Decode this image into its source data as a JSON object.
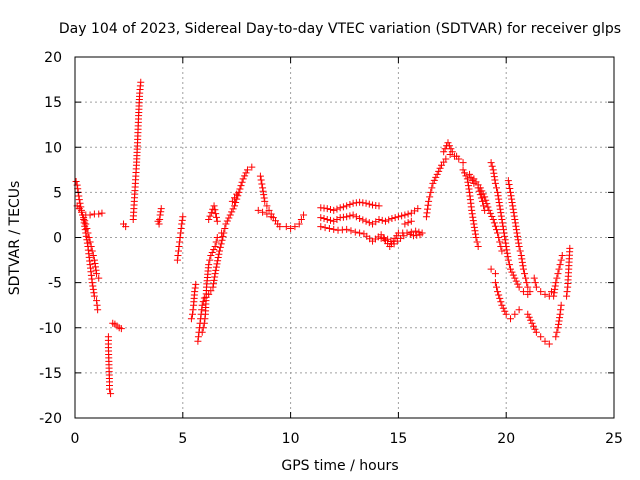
{
  "chart_data": {
    "type": "scatter",
    "title": "Day 104 of 2023, Sidereal Day-to-day VTEC variation (SDTVAR) for receiver glps",
    "xlabel": "GPS time / hours",
    "ylabel": "SDTVAR / TECUs",
    "xlim": [
      0,
      25
    ],
    "ylim": [
      -20,
      20
    ],
    "xticks": [
      0,
      5,
      10,
      15,
      20,
      25
    ],
    "yticks": [
      -20,
      -15,
      -10,
      -5,
      0,
      5,
      10,
      15,
      20
    ],
    "xtick_labels": [
      "0",
      "5",
      "10",
      "15",
      "20",
      "25"
    ],
    "ytick_labels": [
      "-20",
      "-15",
      "-10",
      "-5",
      "0",
      "5",
      "10",
      "15",
      "20"
    ],
    "grid": true,
    "marker": "+",
    "color": "#ff0000",
    "series": [
      {
        "name": "SDTVAR",
        "segments": [
          [
            [
              0.05,
              6.2
            ],
            [
              0.1,
              5.8
            ],
            [
              0.15,
              5.0
            ],
            [
              0.2,
              4.2
            ],
            [
              0.3,
              3.0
            ],
            [
              0.4,
              2.0
            ],
            [
              0.5,
              0.5
            ],
            [
              0.6,
              -1.0
            ],
            [
              0.7,
              -3.0
            ],
            [
              0.8,
              -5.0
            ],
            [
              0.9,
              -6.5
            ],
            [
              1.0,
              -7.0
            ],
            [
              1.05,
              -8.0
            ]
          ],
          [
            [
              0.1,
              3.5
            ],
            [
              0.2,
              3.2
            ],
            [
              0.3,
              2.8
            ],
            [
              0.4,
              2.2
            ],
            [
              0.5,
              1.5
            ],
            [
              0.6,
              0.5
            ],
            [
              0.7,
              -0.5
            ],
            [
              0.8,
              -1.5
            ],
            [
              0.9,
              -2.5
            ],
            [
              1.0,
              -4.0
            ],
            [
              1.1,
              -4.5
            ]
          ],
          [
            [
              0.5,
              2.5
            ],
            [
              0.7,
              2.5
            ],
            [
              0.9,
              2.6
            ],
            [
              1.1,
              2.6
            ],
            [
              1.25,
              2.7
            ]
          ],
          [
            [
              1.55,
              -11.0
            ],
            [
              1.55,
              -12.2
            ],
            [
              1.6,
              -16.0
            ],
            [
              1.6,
              -16.8
            ],
            [
              1.65,
              -17.3
            ]
          ],
          [
            [
              1.75,
              -9.5
            ],
            [
              1.85,
              -9.6
            ],
            [
              1.95,
              -9.8
            ],
            [
              2.05,
              -10.0
            ],
            [
              2.15,
              -10.1
            ]
          ],
          [
            [
              2.25,
              1.5
            ],
            [
              2.35,
              1.2
            ]
          ],
          [
            [
              2.7,
              2.0
            ],
            [
              2.75,
              4.0
            ],
            [
              2.8,
              6.0
            ],
            [
              2.85,
              8.0
            ],
            [
              2.9,
              10.5
            ],
            [
              2.95,
              13.5
            ],
            [
              3.0,
              16.0
            ],
            [
              3.05,
              17.2
            ]
          ],
          [
            [
              3.85,
              1.8
            ],
            [
              3.9,
              1.5
            ],
            [
              3.95,
              2.5
            ],
            [
              4.0,
              3.2
            ]
          ],
          [
            [
              4.75,
              -2.5
            ],
            [
              4.8,
              -1.5
            ],
            [
              4.85,
              -0.5
            ],
            [
              4.9,
              0.5
            ],
            [
              4.95,
              1.5
            ],
            [
              5.0,
              2.3
            ]
          ],
          [
            [
              5.4,
              -9.0
            ],
            [
              5.45,
              -8.5
            ],
            [
              5.5,
              -7.5
            ],
            [
              5.55,
              -6.0
            ],
            [
              5.6,
              -5.2
            ]
          ],
          [
            [
              5.7,
              -11.5
            ],
            [
              5.75,
              -10.5
            ],
            [
              5.8,
              -9.5
            ],
            [
              5.85,
              -8.5
            ],
            [
              5.9,
              -7.5
            ],
            [
              6.0,
              -6.7
            ],
            [
              6.2,
              -6.3
            ],
            [
              6.4,
              -5.5
            ],
            [
              6.5,
              -4.0
            ],
            [
              6.7,
              -1.5
            ],
            [
              6.9,
              0.5
            ],
            [
              7.0,
              1.5
            ],
            [
              7.2,
              2.5
            ],
            [
              7.4,
              3.5
            ],
            [
              7.6,
              5.0
            ],
            [
              7.8,
              6.5
            ],
            [
              8.0,
              7.5
            ],
            [
              8.2,
              7.8
            ]
          ],
          [
            [
              5.9,
              -10.5
            ],
            [
              6.0,
              -9.5
            ],
            [
              6.05,
              -8.5
            ],
            [
              6.1,
              -5.5
            ],
            [
              6.2,
              -3.0
            ],
            [
              6.3,
              -2.0
            ],
            [
              6.5,
              -1.0
            ],
            [
              6.6,
              0.0
            ],
            [
              6.8,
              0.5
            ]
          ],
          [
            [
              6.2,
              2.0
            ],
            [
              6.45,
              3.5
            ],
            [
              6.6,
              1.8
            ]
          ],
          [
            [
              7.3,
              4.0
            ],
            [
              7.5,
              4.8
            ]
          ],
          [
            [
              8.6,
              6.8
            ],
            [
              8.7,
              5.5
            ],
            [
              8.8,
              4.0
            ],
            [
              8.9,
              3.5
            ],
            [
              9.0,
              3.0
            ],
            [
              9.2,
              2.2
            ],
            [
              9.4,
              1.5
            ],
            [
              9.5,
              1.2
            ]
          ],
          [
            [
              8.5,
              3.0
            ],
            [
              8.7,
              2.8
            ],
            [
              8.9,
              2.6
            ],
            [
              9.1,
              2.3
            ]
          ],
          [
            [
              9.8,
              1.2
            ],
            [
              10.0,
              1.0
            ],
            [
              10.2,
              1.2
            ],
            [
              10.4,
              1.5
            ],
            [
              10.5,
              2.0
            ],
            [
              10.6,
              2.5
            ]
          ],
          [
            [
              11.4,
              3.3
            ],
            [
              11.7,
              3.2
            ],
            [
              12.0,
              3.0
            ],
            [
              12.3,
              3.3
            ],
            [
              12.6,
              3.5
            ],
            [
              12.9,
              3.8
            ],
            [
              13.2,
              3.9
            ],
            [
              13.5,
              3.8
            ],
            [
              13.8,
              3.6
            ],
            [
              14.1,
              3.5
            ]
          ],
          [
            [
              11.4,
              2.2
            ],
            [
              11.7,
              2.0
            ],
            [
              12.0,
              1.8
            ],
            [
              12.3,
              2.2
            ],
            [
              12.6,
              2.3
            ],
            [
              12.9,
              2.5
            ],
            [
              13.2,
              2.1
            ],
            [
              13.5,
              1.8
            ],
            [
              13.8,
              1.5
            ],
            [
              14.1,
              2.0
            ],
            [
              14.4,
              1.8
            ],
            [
              14.7,
              2.1
            ],
            [
              15.0,
              2.3
            ],
            [
              15.3,
              2.5
            ],
            [
              15.6,
              2.7
            ],
            [
              15.9,
              3.2
            ]
          ],
          [
            [
              11.4,
              1.2
            ],
            [
              11.8,
              1.0
            ],
            [
              12.2,
              0.8
            ],
            [
              12.6,
              0.9
            ],
            [
              13.0,
              0.6
            ],
            [
              13.4,
              0.4
            ],
            [
              13.8,
              -0.4
            ],
            [
              14.2,
              0.3
            ],
            [
              14.6,
              -1.0
            ],
            [
              15.0,
              0.5
            ],
            [
              15.4,
              0.5
            ],
            [
              15.8,
              0.7
            ],
            [
              16.1,
              0.5
            ]
          ],
          [
            [
              14.2,
              -0.1
            ],
            [
              14.5,
              -0.2
            ],
            [
              14.8,
              -0.7
            ],
            [
              15.1,
              -0.1
            ],
            [
              15.4,
              0.5
            ],
            [
              15.7,
              0.2
            ],
            [
              16.0,
              0.3
            ]
          ],
          [
            [
              15.3,
              1.5
            ],
            [
              15.6,
              1.8
            ]
          ],
          [
            [
              16.3,
              2.3
            ],
            [
              16.4,
              4.0
            ],
            [
              16.5,
              5.0
            ],
            [
              16.6,
              6.0
            ],
            [
              16.8,
              7.0
            ],
            [
              17.0,
              8.0
            ],
            [
              17.2,
              8.7
            ],
            [
              17.4,
              9.2
            ],
            [
              17.6,
              9.0
            ],
            [
              17.8,
              8.7
            ],
            [
              18.0,
              8.3
            ]
          ],
          [
            [
              17.1,
              9.5
            ],
            [
              17.3,
              10.5
            ],
            [
              17.5,
              9.5
            ],
            [
              17.7,
              9.0
            ]
          ],
          [
            [
              18.0,
              7.5
            ],
            [
              18.2,
              6.5
            ],
            [
              18.3,
              5.0
            ],
            [
              18.4,
              3.0
            ],
            [
              18.5,
              1.5
            ],
            [
              18.6,
              0.0
            ],
            [
              18.7,
              -1.0
            ]
          ],
          [
            [
              18.3,
              7.0
            ],
            [
              18.5,
              6.0
            ],
            [
              18.7,
              5.5
            ],
            [
              18.9,
              4.0
            ],
            [
              19.0,
              3.0
            ]
          ],
          [
            [
              18.5,
              6.5
            ],
            [
              18.8,
              5.5
            ],
            [
              19.0,
              4.5
            ],
            [
              19.2,
              3.0
            ],
            [
              19.4,
              2.0
            ],
            [
              19.6,
              0.5
            ],
            [
              19.7,
              -0.5
            ],
            [
              19.8,
              -1.5
            ]
          ],
          [
            [
              19.3,
              -3.5
            ],
            [
              19.5,
              -4.0
            ]
          ],
          [
            [
              19.3,
              8.3
            ],
            [
              19.4,
              7.5
            ],
            [
              19.5,
              6.0
            ],
            [
              19.6,
              5.0
            ],
            [
              19.7,
              3.5
            ],
            [
              19.8,
              2.0
            ],
            [
              19.9,
              0.5
            ],
            [
              20.0,
              -1.0
            ],
            [
              20.1,
              -2.5
            ],
            [
              20.2,
              -3.5
            ],
            [
              20.4,
              -4.5
            ],
            [
              20.6,
              -5.5
            ],
            [
              20.8,
              -6.0
            ],
            [
              21.0,
              -6.3
            ]
          ],
          [
            [
              19.5,
              -5.0
            ],
            [
              19.6,
              -6.0
            ],
            [
              19.8,
              -7.5
            ],
            [
              20.0,
              -8.5
            ],
            [
              20.2,
              -9.0
            ],
            [
              20.4,
              -8.5
            ],
            [
              20.6,
              -8.0
            ]
          ],
          [
            [
              20.1,
              6.3
            ],
            [
              20.2,
              5.0
            ],
            [
              20.3,
              3.5
            ],
            [
              20.4,
              2.0
            ],
            [
              20.5,
              0.5
            ],
            [
              20.6,
              -1.0
            ],
            [
              20.7,
              -2.0
            ],
            [
              20.8,
              -3.5
            ],
            [
              20.9,
              -4.5
            ],
            [
              21.0,
              -5.5
            ],
            [
              21.1,
              -6.0
            ]
          ],
          [
            [
              21.3,
              -4.5
            ],
            [
              21.4,
              -5.5
            ],
            [
              21.6,
              -6.0
            ],
            [
              21.8,
              -6.3
            ],
            [
              22.0,
              -6.5
            ],
            [
              22.1,
              -6.0
            ]
          ],
          [
            [
              21.0,
              -8.5
            ],
            [
              21.2,
              -9.5
            ],
            [
              21.4,
              -10.5
            ],
            [
              21.6,
              -11.0
            ],
            [
              21.8,
              -11.5
            ],
            [
              22.0,
              -11.8
            ]
          ],
          [
            [
              22.3,
              -11.0
            ],
            [
              22.4,
              -10.0
            ],
            [
              22.5,
              -8.5
            ],
            [
              22.55,
              -7.5
            ]
          ],
          [
            [
              22.2,
              -6.5
            ],
            [
              22.3,
              -5.0
            ],
            [
              22.4,
              -4.0
            ],
            [
              22.5,
              -3.0
            ],
            [
              22.6,
              -2.0
            ]
          ],
          [
            [
              22.8,
              -6.5
            ],
            [
              22.85,
              -5.5
            ],
            [
              22.9,
              -3.5
            ],
            [
              22.95,
              -1.2
            ]
          ]
        ]
      }
    ]
  }
}
